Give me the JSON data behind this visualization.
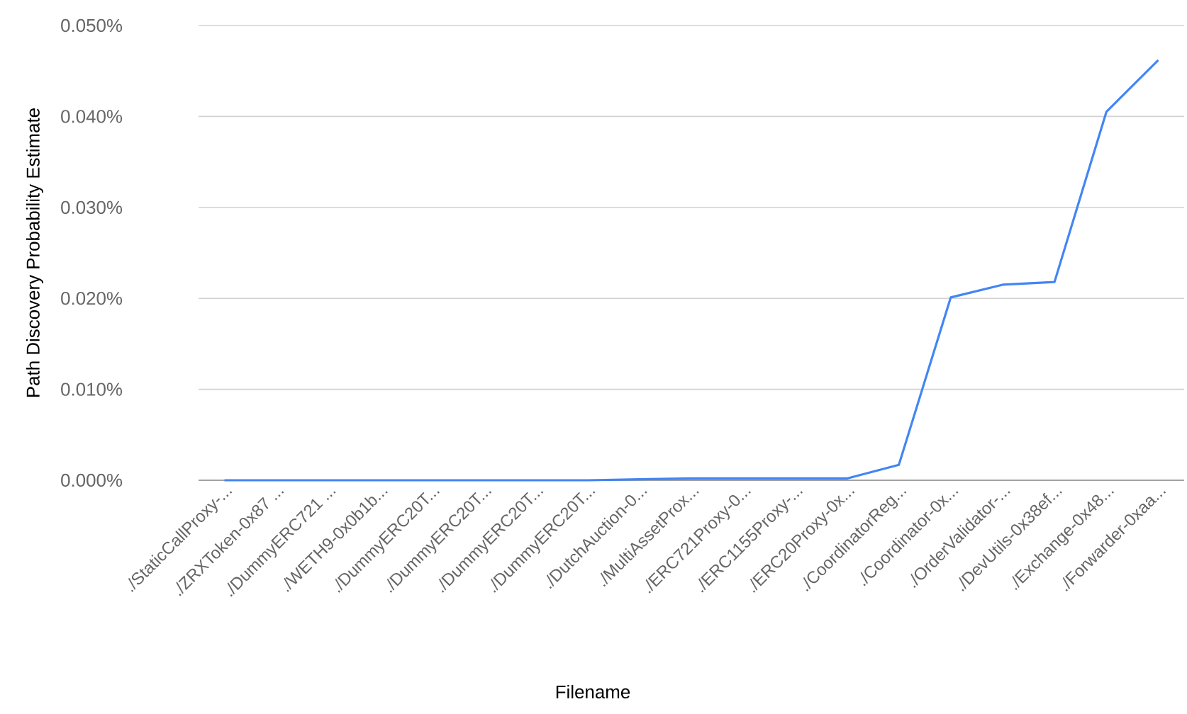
{
  "chart_data": {
    "type": "line",
    "xlabel": "Filename",
    "ylabel": "Path Discovery Probability Estimate",
    "categories": [
      "./StaticCallProxy-...",
      "./ZRXToken-0x87 ...",
      "./DummyERC721 ...",
      "./WETH9-0x0b1b...",
      "./DummyERC20T...",
      "./DummyERC20T...",
      "./DummyERC20T...",
      "./DummyERC20T...",
      "./DutchAuction-0...",
      "./MultiAssetProx...",
      "./ERC721Proxy-0...",
      "./ERC1155Proxy-...",
      "./ERC20Proxy-0x...",
      "./CoordinatorReg...",
      "./Coordinator-0x...",
      "./OrderValidator-...",
      "./DevUtils-0x38ef...",
      "./Exchange-0x48...",
      "./Forwarder-0xaa..."
    ],
    "series": [
      {
        "color": "#4285f4",
        "values": [
          0,
          0,
          0,
          0,
          0,
          0,
          0,
          0,
          0.0001,
          0.0002,
          0.0002,
          0.0002,
          0.0002,
          0.0017,
          0.0201,
          0.0215,
          0.0218,
          0.0405,
          0.0462
        ]
      }
    ],
    "ylim": [
      0,
      0.05
    ],
    "yticks": [
      {
        "value": 0,
        "label": "0.000%"
      },
      {
        "value": 0.01,
        "label": "0.010%"
      },
      {
        "value": 0.02,
        "label": "0.020%"
      },
      {
        "value": 0.03,
        "label": "0.030%"
      },
      {
        "value": 0.04,
        "label": "0.040%"
      },
      {
        "value": 0.05,
        "label": "0.050%"
      }
    ],
    "grid": "y",
    "line_style": "solid"
  }
}
